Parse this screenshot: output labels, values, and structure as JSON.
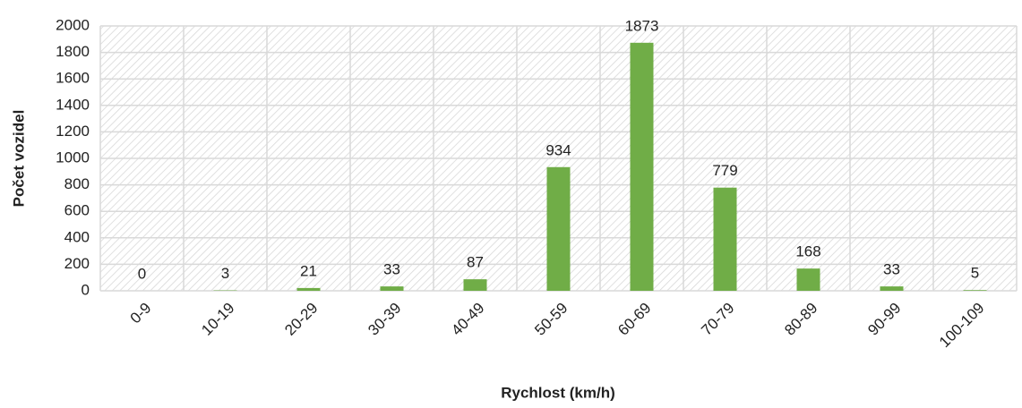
{
  "chart_data": {
    "type": "bar",
    "x_label": "Rychlost (km/h)",
    "y_label": "Počet vozidel",
    "categories": [
      "0-9",
      "10-19",
      "20-29",
      "30-39",
      "40-49",
      "50-59",
      "60-69",
      "70-79",
      "80-89",
      "90-99",
      "100-109"
    ],
    "values": [
      0,
      3,
      21,
      33,
      87,
      934,
      1873,
      779,
      168,
      33,
      5
    ],
    "color": "#70ad47",
    "ylim": [
      0,
      2000
    ],
    "yticks": [
      0,
      200,
      400,
      600,
      800,
      1000,
      1200,
      1400,
      1600,
      1800,
      2000
    ],
    "grid": true
  }
}
